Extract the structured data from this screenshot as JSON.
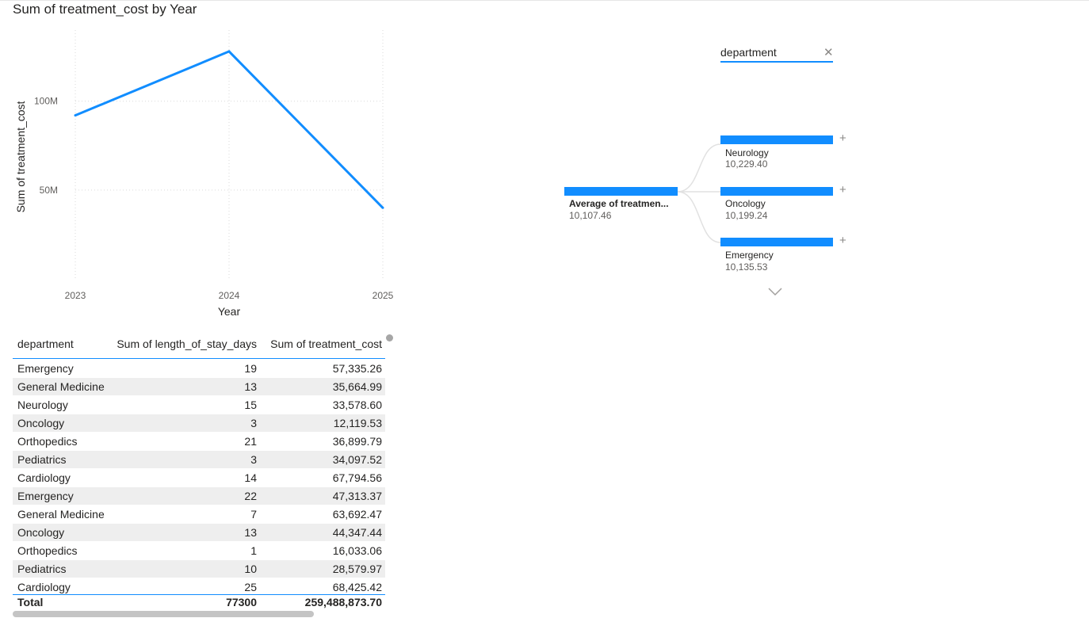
{
  "chart_data": {
    "type": "line",
    "title": "Sum of treatment_cost by Year",
    "xlabel": "Year",
    "ylabel": "Sum of treatment_cost",
    "categories": [
      "2023",
      "2024",
      "2025"
    ],
    "series": [
      {
        "values": [
          92000000,
          128000000,
          40000000
        ]
      }
    ],
    "ylim": [
      0,
      140000000
    ],
    "y_ticks": [
      {
        "value": 50000000,
        "label": "50M"
      },
      {
        "value": 100000000,
        "label": "100M"
      }
    ],
    "grid": true,
    "line_color": "#118dff"
  },
  "table": {
    "columns": [
      "department",
      "Sum of length_of_stay_days",
      "Sum of treatment_cost"
    ],
    "rows": [
      [
        "Emergency",
        "19",
        "57,335.26"
      ],
      [
        "General Medicine",
        "13",
        "35,664.99"
      ],
      [
        "Neurology",
        "15",
        "33,578.60"
      ],
      [
        "Oncology",
        "3",
        "12,119.53"
      ],
      [
        "Orthopedics",
        "21",
        "36,899.79"
      ],
      [
        "Pediatrics",
        "3",
        "34,097.52"
      ],
      [
        "Cardiology",
        "14",
        "67,794.56"
      ],
      [
        "Emergency",
        "22",
        "47,313.37"
      ],
      [
        "General Medicine",
        "7",
        "63,692.47"
      ],
      [
        "Oncology",
        "13",
        "44,347.44"
      ],
      [
        "Orthopedics",
        "1",
        "16,033.06"
      ],
      [
        "Pediatrics",
        "10",
        "28,579.97"
      ],
      [
        "Cardiology",
        "25",
        "68,425.42"
      ]
    ],
    "total": {
      "label": "Total",
      "stay": "77300",
      "cost": "259,488,873.70"
    }
  },
  "decomp_tree": {
    "field_label": "department",
    "close_icon": "close-icon",
    "root": {
      "label": "Average of treatmen...",
      "value": "10,107.46"
    },
    "nodes": [
      {
        "label": "Neurology",
        "value": "10,229.40"
      },
      {
        "label": "Oncology",
        "value": "10,199.24"
      },
      {
        "label": "Emergency",
        "value": "10,135.53"
      }
    ],
    "expand_icon": "plus-icon",
    "more_icon": "chevron-down-icon",
    "bar_color": "#118dff"
  }
}
